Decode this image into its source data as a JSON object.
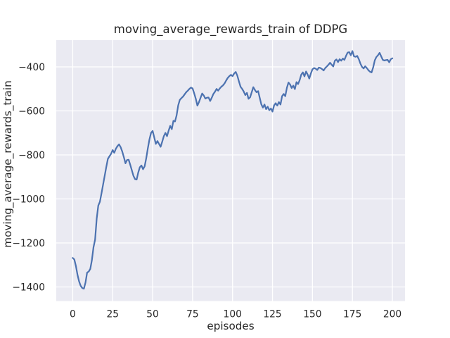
{
  "figure": {
    "title": "moving_average_rewards_train of DDPG",
    "xlabel": "episodes",
    "ylabel": "moving_average_rewards_train",
    "colors": {
      "figure_bg": "#ffffff",
      "axes_bg": "#eaeaf2",
      "grid": "#ffffff",
      "line": "#4c72b0",
      "text": "#262626"
    }
  },
  "chart_data": {
    "type": "line",
    "title": "moving_average_rewards_train of DDPG",
    "xlabel": "episodes",
    "ylabel": "moving_average_rewards_train",
    "xlim": [
      -10.3,
      207.9
    ],
    "ylim": [
      -1464,
      -278.4
    ],
    "xticks": [
      0,
      25,
      50,
      75,
      100,
      125,
      150,
      175,
      200
    ],
    "yticks": [
      -1400,
      -1200,
      -1000,
      -800,
      -600,
      -400
    ],
    "grid": true,
    "legend": false,
    "style": "seaborn-darkgrid",
    "series": [
      {
        "name": "moving_average_rewards_train",
        "x": [
          0,
          1,
          2,
          3,
          4,
          5,
          6,
          7,
          8,
          9,
          10,
          11,
          12,
          13,
          14,
          15,
          16,
          17,
          18,
          19,
          20,
          21,
          22,
          23,
          24,
          25,
          26,
          27,
          28,
          29,
          30,
          31,
          32,
          33,
          34,
          35,
          36,
          37,
          38,
          39,
          40,
          41,
          42,
          43,
          44,
          45,
          46,
          47,
          48,
          49,
          50,
          51,
          52,
          53,
          54,
          55,
          56,
          57,
          58,
          59,
          60,
          61,
          62,
          63,
          64,
          65,
          66,
          67,
          68,
          69,
          70,
          71,
          72,
          73,
          74,
          75,
          76,
          77,
          78,
          79,
          80,
          81,
          82,
          83,
          84,
          85,
          86,
          87,
          88,
          89,
          90,
          91,
          92,
          93,
          94,
          95,
          96,
          97,
          98,
          99,
          100,
          101,
          102,
          103,
          104,
          105,
          106,
          107,
          108,
          109,
          110,
          111,
          112,
          113,
          114,
          115,
          116,
          117,
          118,
          119,
          120,
          121,
          122,
          123,
          124,
          125,
          126,
          127,
          128,
          129,
          130,
          131,
          132,
          133,
          134,
          135,
          136,
          137,
          138,
          139,
          140,
          141,
          142,
          143,
          144,
          145,
          146,
          147,
          148,
          149,
          150,
          151,
          152,
          153,
          154,
          155,
          156,
          157,
          158,
          159,
          160,
          161,
          162,
          163,
          164,
          165,
          166,
          167,
          168,
          169,
          170,
          171,
          172,
          173,
          174,
          175,
          176,
          177,
          178,
          179,
          180,
          181,
          182,
          183,
          184,
          185,
          186,
          187,
          188,
          189,
          190,
          191,
          192,
          193,
          194,
          195,
          196,
          197,
          198,
          199,
          200
        ],
        "y": [
          -1268,
          -1275,
          -1305,
          -1345,
          -1375,
          -1395,
          -1405,
          -1408,
          -1380,
          -1335,
          -1330,
          -1318,
          -1278,
          -1220,
          -1185,
          -1090,
          -1030,
          -1013,
          -975,
          -935,
          -895,
          -855,
          -818,
          -806,
          -795,
          -778,
          -790,
          -772,
          -760,
          -752,
          -765,
          -785,
          -810,
          -838,
          -823,
          -822,
          -845,
          -870,
          -895,
          -910,
          -912,
          -880,
          -856,
          -848,
          -865,
          -852,
          -815,
          -770,
          -730,
          -700,
          -691,
          -720,
          -750,
          -737,
          -750,
          -763,
          -740,
          -715,
          -700,
          -715,
          -690,
          -668,
          -683,
          -645,
          -648,
          -620,
          -575,
          -550,
          -542,
          -535,
          -525,
          -515,
          -508,
          -500,
          -494,
          -498,
          -520,
          -545,
          -576,
          -560,
          -540,
          -521,
          -530,
          -544,
          -540,
          -539,
          -555,
          -540,
          -523,
          -513,
          -500,
          -508,
          -498,
          -490,
          -484,
          -475,
          -462,
          -450,
          -442,
          -436,
          -442,
          -430,
          -423,
          -440,
          -466,
          -490,
          -500,
          -512,
          -528,
          -518,
          -545,
          -538,
          -515,
          -492,
          -505,
          -515,
          -510,
          -540,
          -570,
          -585,
          -571,
          -592,
          -581,
          -597,
          -589,
          -603,
          -575,
          -565,
          -576,
          -560,
          -571,
          -533,
          -523,
          -533,
          -495,
          -471,
          -480,
          -496,
          -485,
          -501,
          -469,
          -478,
          -460,
          -435,
          -425,
          -443,
          -421,
          -435,
          -453,
          -430,
          -411,
          -405,
          -408,
          -414,
          -403,
          -405,
          -410,
          -416,
          -405,
          -398,
          -390,
          -381,
          -390,
          -398,
          -372,
          -366,
          -378,
          -365,
          -372,
          -362,
          -368,
          -350,
          -335,
          -333,
          -347,
          -328,
          -352,
          -354,
          -350,
          -365,
          -385,
          -400,
          -407,
          -397,
          -405,
          -415,
          -422,
          -425,
          -402,
          -370,
          -355,
          -347,
          -336,
          -352,
          -368,
          -371,
          -369,
          -368,
          -379,
          -365,
          -361
        ]
      }
    ]
  }
}
